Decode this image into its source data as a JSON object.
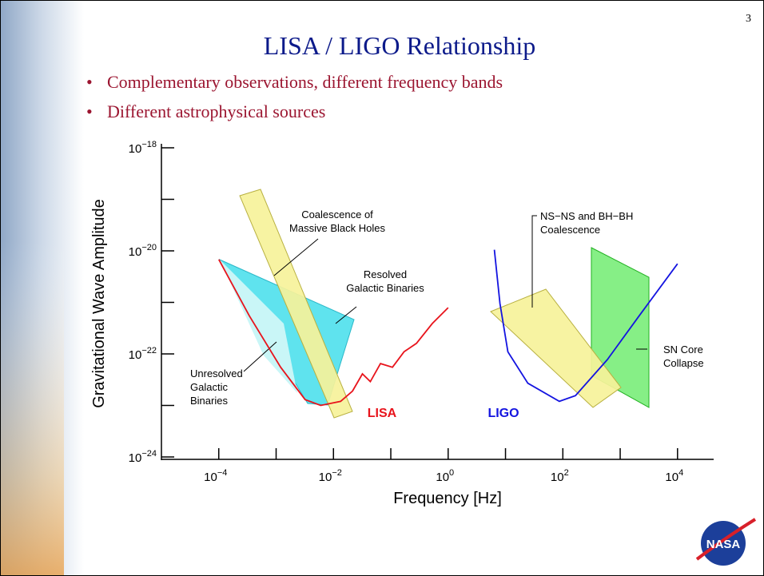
{
  "slide": {
    "page_number": "3",
    "title": "LISA / LIGO Relationship",
    "bullets": [
      "Complementary observations, different frequency bands",
      "Different astrophysical sources"
    ],
    "logo": "NASA"
  },
  "chart_data": {
    "type": "line",
    "xscale": "log",
    "yscale": "log",
    "grid": false,
    "xlabel": "Frequency  [Hz]",
    "ylabel": "Gravitational Wave Amplitude",
    "xlim": [
      1e-05,
      40000
    ],
    "ylim": [
      1e-24,
      1e-18
    ],
    "xticks": [
      {
        "value": 0.0001,
        "label": "10",
        "exponent": "−4"
      },
      {
        "value": 0.01,
        "label": "10",
        "exponent": "−2"
      },
      {
        "value": 1,
        "label": "10",
        "exponent": "0"
      },
      {
        "value": 100,
        "label": "10",
        "exponent": "2"
      },
      {
        "value": 10000,
        "label": "10",
        "exponent": "4"
      }
    ],
    "xminorticks": [
      0.001,
      0.1,
      10,
      1000
    ],
    "yticks": [
      {
        "value": 1e-24,
        "label": "10",
        "exponent": "−24"
      },
      {
        "value": 1e-22,
        "label": "10",
        "exponent": "−22"
      },
      {
        "value": 1e-20,
        "label": "10",
        "exponent": "−20"
      },
      {
        "value": 1e-18,
        "label": "10",
        "exponent": "−18"
      }
    ],
    "yminorticks": [
      1e-23,
      1e-21,
      1e-19
    ],
    "series": [
      {
        "name": "LISA",
        "color": "#e8141c",
        "x": [
          0.0001,
          0.00034,
          0.0012,
          0.0032,
          0.006,
          0.0133,
          0.0215,
          0.032,
          0.044,
          0.066,
          0.107,
          0.17,
          0.28,
          0.53,
          1
        ],
        "values": [
          6.8e-21,
          5.5e-22,
          5.5e-23,
          1.3e-23,
          1e-23,
          1.2e-23,
          1.9e-23,
          4.1e-23,
          2.9e-23,
          6.5e-23,
          5.5e-23,
          1.1e-22,
          1.6e-22,
          3.9e-22,
          7.9e-22
        ]
      },
      {
        "name": "LIGO",
        "color": "#1414e0",
        "x": [
          6.4,
          8,
          11,
          24.5,
          87,
          166,
          600,
          2150,
          10000
        ],
        "values": [
          1.05e-20,
          9.5e-22,
          1.1e-22,
          2.7e-23,
          1.2e-23,
          1.55e-23,
          7.8e-23,
          5.5e-22,
          5.6e-21
        ]
      }
    ],
    "annotations": [
      {
        "lines": [
          "Coalescence of",
          "Massive Black Holes"
        ]
      },
      {
        "lines": [
          "Resolved",
          "Galactic Binaries"
        ]
      },
      {
        "lines": [
          "Unresolved",
          "Galactic",
          "Binaries"
        ]
      },
      {
        "lines": [
          "NS−NS and BH−BH",
          "Coalescence"
        ]
      },
      {
        "lines": [
          "SN Core",
          "Collapse"
        ]
      }
    ]
  }
}
